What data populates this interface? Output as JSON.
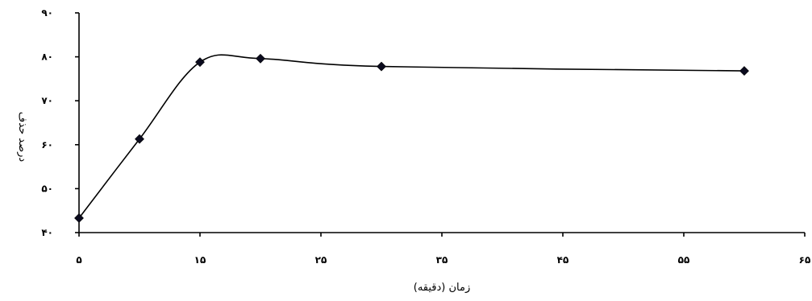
{
  "chart_data": {
    "type": "line",
    "xlabel": "زمان (دقیقه)",
    "ylabel": "درصد حذف",
    "xlim": [
      5,
      65
    ],
    "ylim": [
      40,
      90
    ],
    "x_ticks": [
      5,
      15,
      25,
      35,
      45,
      55,
      65
    ],
    "y_ticks": [
      40,
      50,
      60,
      70,
      80,
      90
    ],
    "x_tick_labels": [
      "۵",
      "۱۵",
      "۲۵",
      "۳۵",
      "۴۵",
      "۵۵",
      "۶۵"
    ],
    "y_tick_labels": [
      "۴۰",
      "۵۰",
      "۶۰",
      "۷۰",
      "۸۰",
      "۹۰"
    ],
    "grid": false,
    "smooth": true,
    "series": [
      {
        "x": [
          5,
          10,
          15,
          20,
          30,
          60
        ],
        "y": [
          43.3,
          61.3,
          78.8,
          79.6,
          77.8,
          76.8
        ]
      }
    ],
    "colors": {
      "line": "#000000",
      "marker": "#0b0b1e"
    }
  }
}
